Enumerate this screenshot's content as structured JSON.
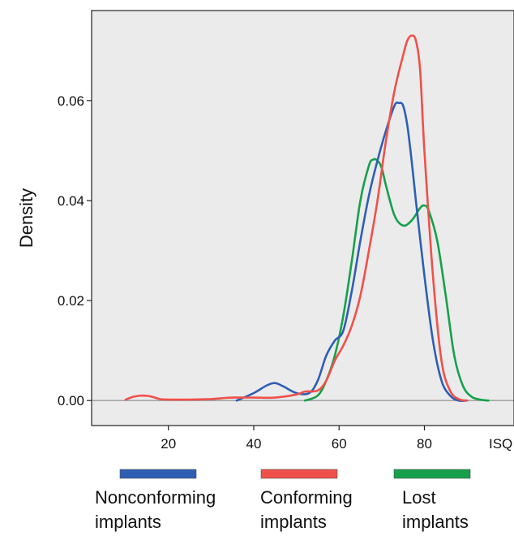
{
  "chart_data": {
    "type": "line",
    "title": "",
    "xlabel": "ISQ",
    "ylabel": "Density",
    "xlim": [
      2,
      101
    ],
    "ylim": [
      -0.005,
      0.078
    ],
    "x_ticks": [
      20,
      40,
      60,
      80
    ],
    "y_ticks": [
      0.0,
      0.02,
      0.04,
      0.06
    ],
    "y_tick_labels": [
      "0.00",
      "0.02",
      "0.04",
      "0.06"
    ],
    "grid": false,
    "background": "#ebebeb",
    "zero_line": true,
    "legend": {
      "position": "bottom"
    },
    "series": [
      {
        "name": "Nonconforming implants",
        "label_lines": [
          "Nonconforming",
          "implants"
        ],
        "color": "#2e5fb3",
        "x": [
          36,
          40,
          43,
          45,
          47,
          50,
          53,
          55,
          57,
          59,
          61,
          63,
          65,
          67,
          69,
          71,
          73,
          74,
          75,
          76,
          77,
          78,
          80,
          82,
          84,
          86,
          88,
          90
        ],
        "y": [
          0.0,
          0.0015,
          0.003,
          0.0035,
          0.0028,
          0.0015,
          0.0015,
          0.004,
          0.009,
          0.012,
          0.014,
          0.022,
          0.032,
          0.041,
          0.048,
          0.054,
          0.059,
          0.0595,
          0.059,
          0.055,
          0.048,
          0.04,
          0.025,
          0.012,
          0.004,
          0.001,
          0.0,
          0.0
        ]
      },
      {
        "name": "Conforming implants",
        "label_lines": [
          "Conforming",
          "implants"
        ],
        "color": "#f0504a",
        "x": [
          10,
          12,
          14,
          16,
          18,
          20,
          25,
          30,
          33,
          35,
          40,
          45,
          50,
          52,
          55,
          57,
          59,
          61,
          63,
          65,
          67,
          69,
          71,
          73,
          75,
          76,
          77,
          78,
          79,
          80,
          82,
          84,
          86,
          88,
          90
        ],
        "y": [
          0.0002,
          0.0008,
          0.001,
          0.0008,
          0.0003,
          0.0002,
          0.0002,
          0.0003,
          0.0005,
          0.0006,
          0.0006,
          0.0006,
          0.0012,
          0.0018,
          0.002,
          0.004,
          0.008,
          0.011,
          0.015,
          0.021,
          0.03,
          0.04,
          0.052,
          0.062,
          0.069,
          0.072,
          0.073,
          0.072,
          0.066,
          0.05,
          0.025,
          0.008,
          0.002,
          0.0003,
          0.0
        ]
      },
      {
        "name": "Lost implants",
        "label_lines": [
          "Lost",
          "implants"
        ],
        "color": "#16a04a",
        "x": [
          52,
          55,
          57,
          59,
          61,
          63,
          65,
          67,
          68,
          69,
          70,
          71,
          73,
          75,
          77,
          79,
          80,
          81,
          83,
          85,
          87,
          89,
          91,
          93,
          95
        ],
        "y": [
          0.0,
          0.001,
          0.004,
          0.009,
          0.017,
          0.028,
          0.04,
          0.047,
          0.0482,
          0.048,
          0.0465,
          0.043,
          0.037,
          0.035,
          0.036,
          0.0385,
          0.039,
          0.038,
          0.032,
          0.021,
          0.009,
          0.003,
          0.0008,
          0.0002,
          0.0
        ]
      }
    ]
  }
}
